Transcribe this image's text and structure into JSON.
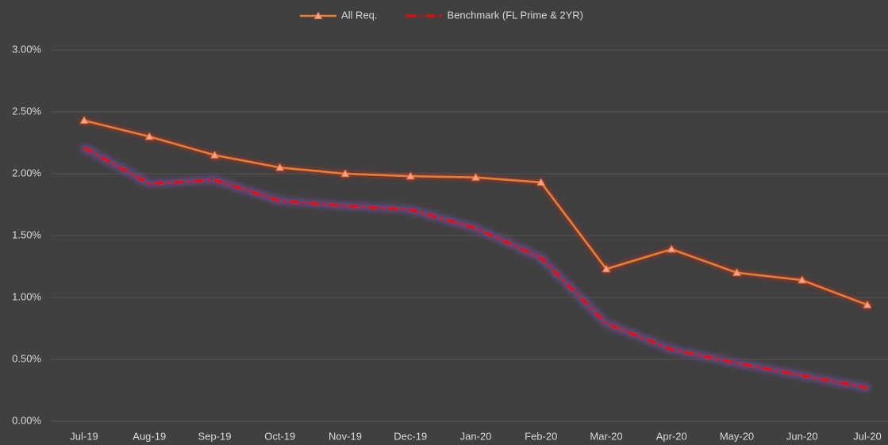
{
  "chart_data": {
    "type": "line",
    "categories": [
      "Jul-19",
      "Aug-19",
      "Sep-19",
      "Oct-19",
      "Nov-19",
      "Dec-19",
      "Jan-20",
      "Feb-20",
      "Mar-20",
      "Apr-20",
      "May-20",
      "Jun-20",
      "Jul-20"
    ],
    "series": [
      {
        "name": "All Req.",
        "color": "#ed7d31",
        "marker": "triangle",
        "values": [
          2.43,
          2.3,
          2.15,
          2.05,
          2.0,
          1.98,
          1.97,
          1.93,
          1.23,
          1.39,
          1.2,
          1.14,
          0.94
        ]
      },
      {
        "name": "Benchmark (FL Prime & 2YR)",
        "color": "#ff0000",
        "dash": "dash-dot",
        "values": [
          2.21,
          1.92,
          1.95,
          1.78,
          1.74,
          1.71,
          1.56,
          1.32,
          0.79,
          0.58,
          0.47,
          0.37,
          0.27
        ]
      }
    ],
    "ylim": [
      0,
      3
    ],
    "yticks": [
      {
        "value": 0,
        "label": "0.00%"
      },
      {
        "value": 0.5,
        "label": "0.50%"
      },
      {
        "value": 1,
        "label": "1.00%"
      },
      {
        "value": 1.5,
        "label": "1.50%"
      },
      {
        "value": 2,
        "label": "2.00%"
      },
      {
        "value": 2.5,
        "label": "2.50%"
      },
      {
        "value": 3,
        "label": "3.00%"
      }
    ],
    "grid": true,
    "legend": "top"
  }
}
